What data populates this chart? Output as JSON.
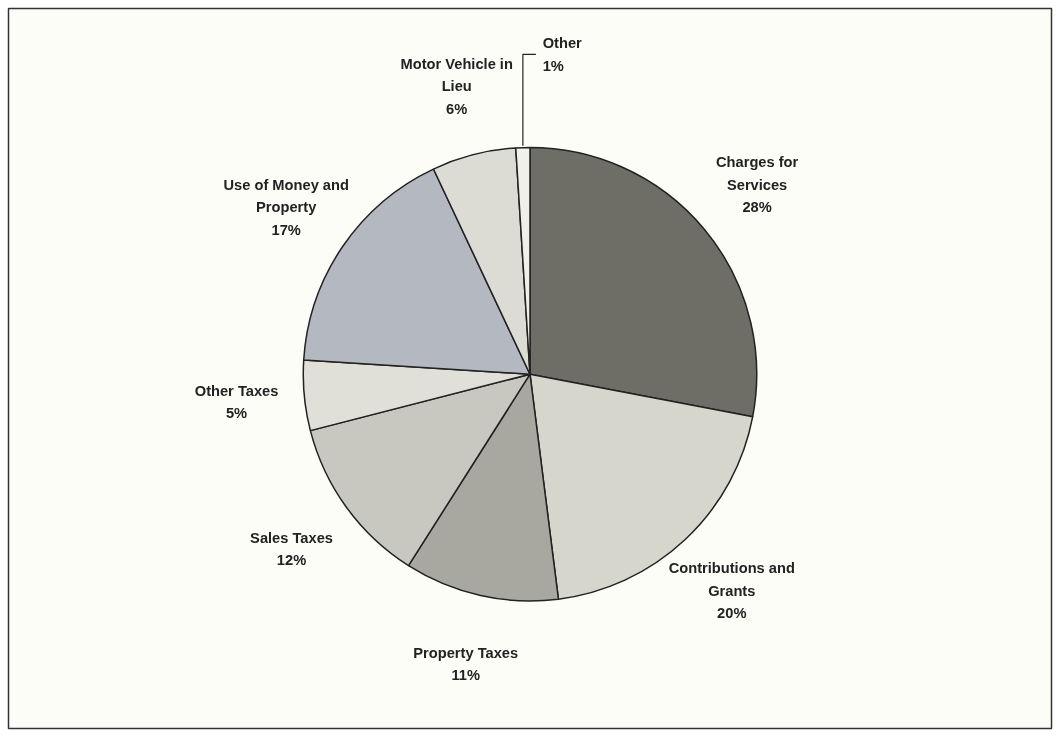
{
  "chart_data": {
    "type": "pie",
    "categories": [
      "Charges for Services",
      "Contributions and Grants",
      "Property Taxes",
      "Sales Taxes",
      "Other Taxes",
      "Use of Money and Property",
      "Motor Vehicle in Lieu",
      "Other"
    ],
    "values": [
      28,
      20,
      11,
      12,
      5,
      17,
      6,
      1
    ],
    "value_labels": [
      "28%",
      "20%",
      "11%",
      "12%",
      "5%",
      "17%",
      "6%",
      "1%"
    ],
    "colors": [
      "#6e6e66",
      "#d6d6cc",
      "#a8a8a0",
      "#c8c8c0",
      "#e0e0d8",
      "#b4b8c0",
      "#dcdcd4",
      "#f0f0e8"
    ]
  }
}
